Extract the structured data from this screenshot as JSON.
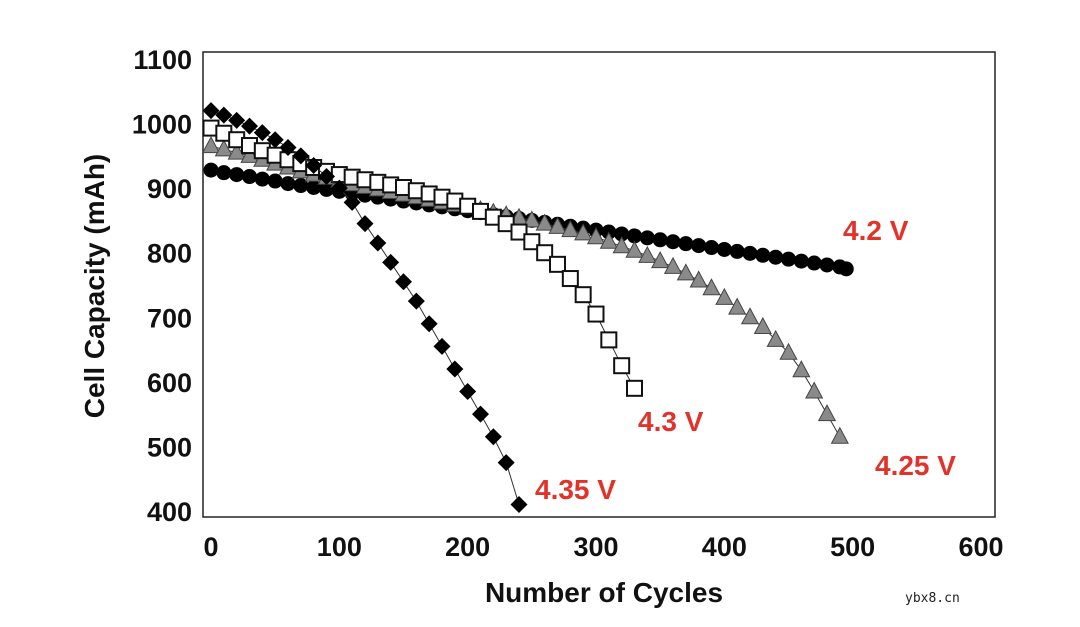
{
  "chart_data": {
    "type": "scatter",
    "title": "",
    "xlabel": "Number of Cycles",
    "ylabel": "Cell Capacity (mAh)",
    "xlim": [
      0,
      600
    ],
    "ylim": [
      400,
      1100
    ],
    "xticks": [
      "0",
      "100",
      "200",
      "300",
      "400",
      "500",
      "600"
    ],
    "yticks": [
      "400",
      "500",
      "600",
      "700",
      "800",
      "900",
      "1000",
      "1100"
    ],
    "grid": false,
    "series": [
      {
        "name": "4.2 V",
        "marker": "circle",
        "color": "#000000",
        "x": [
          0,
          10,
          20,
          30,
          40,
          50,
          60,
          70,
          80,
          90,
          100,
          110,
          120,
          130,
          140,
          150,
          160,
          170,
          180,
          190,
          200,
          210,
          220,
          230,
          240,
          250,
          260,
          270,
          280,
          290,
          300,
          310,
          320,
          330,
          340,
          350,
          360,
          370,
          380,
          390,
          400,
          410,
          420,
          430,
          440,
          450,
          460,
          470,
          480,
          490,
          495
        ],
        "y": [
          928,
          924,
          921,
          918,
          914,
          911,
          907,
          904,
          901,
          898,
          895,
          892,
          889,
          886,
          883,
          880,
          877,
          874,
          871,
          868,
          865,
          862,
          859,
          856,
          853,
          850,
          847,
          844,
          841,
          838,
          835,
          832,
          829,
          826,
          823,
          820,
          817,
          814,
          811,
          808,
          805,
          802,
          799,
          796,
          793,
          790,
          787,
          784,
          781,
          778,
          775
        ]
      },
      {
        "name": "4.25 V",
        "marker": "triangle",
        "color": "#8a8a8a",
        "x": [
          0,
          10,
          20,
          30,
          40,
          50,
          60,
          70,
          80,
          90,
          100,
          110,
          120,
          130,
          140,
          150,
          160,
          170,
          180,
          190,
          200,
          210,
          220,
          230,
          240,
          250,
          260,
          270,
          280,
          290,
          300,
          310,
          320,
          330,
          340,
          350,
          360,
          370,
          380,
          390,
          400,
          410,
          420,
          430,
          440,
          450,
          460,
          470,
          480,
          490
        ],
        "y": [
          965,
          960,
          955,
          950,
          944,
          938,
          932,
          926,
          921,
          916,
          911,
          906,
          902,
          898,
          894,
          890,
          886,
          882,
          878,
          874,
          870,
          866,
          862,
          858,
          854,
          850,
          845,
          840,
          835,
          830,
          824,
          817,
          810,
          803,
          795,
          787,
          778,
          768,
          757,
          745,
          730,
          715,
          700,
          685,
          665,
          645,
          618,
          585,
          550,
          515
        ]
      },
      {
        "name": "4.3 V",
        "marker": "open-square",
        "color": "#000000",
        "x": [
          0,
          10,
          20,
          30,
          40,
          50,
          60,
          70,
          80,
          90,
          100,
          110,
          120,
          130,
          140,
          150,
          160,
          170,
          180,
          190,
          200,
          210,
          220,
          230,
          240,
          250,
          260,
          270,
          280,
          290,
          300,
          310,
          320,
          330
        ],
        "y": [
          993,
          985,
          975,
          966,
          958,
          951,
          944,
          938,
          932,
          926,
          921,
          917,
          913,
          909,
          905,
          901,
          896,
          891,
          886,
          880,
          872,
          864,
          855,
          845,
          832,
          817,
          800,
          782,
          760,
          735,
          705,
          665,
          625,
          590
        ]
      },
      {
        "name": "4.35 V",
        "marker": "diamond",
        "color": "#000000",
        "x": [
          0,
          10,
          20,
          30,
          40,
          50,
          60,
          70,
          80,
          90,
          100,
          110,
          120,
          130,
          140,
          150,
          160,
          170,
          180,
          190,
          200,
          210,
          220,
          230,
          240
        ],
        "y": [
          1020,
          1013,
          1005,
          996,
          986,
          975,
          963,
          950,
          935,
          918,
          900,
          878,
          845,
          815,
          785,
          755,
          725,
          690,
          655,
          620,
          585,
          550,
          515,
          475,
          410
        ]
      }
    ],
    "annotations": [
      {
        "text": "4.2 V",
        "x": 490,
        "y": 830
      },
      {
        "text": "4.3 V",
        "x": 325,
        "y": 555
      },
      {
        "text": "4.25 V",
        "x": 505,
        "y": 480
      },
      {
        "text": "4.35 V",
        "x": 245,
        "y": 450
      }
    ]
  },
  "watermark": "ybx8.cn"
}
